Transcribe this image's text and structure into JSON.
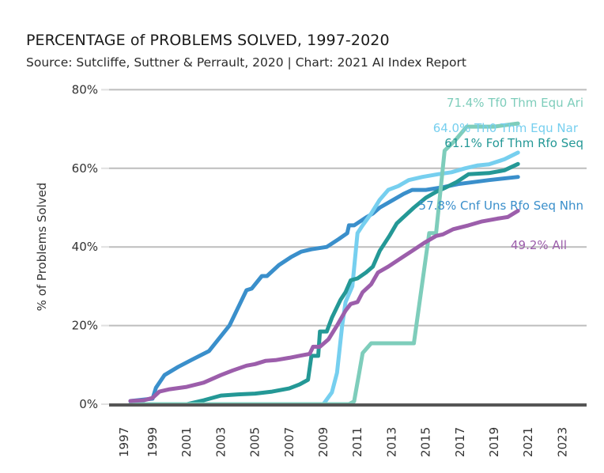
{
  "header": {
    "title": "PERCENTAGE of PROBLEMS SOLVED, 1997-2020",
    "subtitle": "Source: Sutcliffe, Suttner & Perrault, 2020 | Chart: 2021 AI Index Report"
  },
  "chart_data": {
    "type": "line",
    "title": "PERCENTAGE of PROBLEMS SOLVED, 1997-2020",
    "subtitle": "Source: Sutcliffe, Suttner & Perrault, 2020 | Chart: 2021 AI Index Report",
    "xlabel": "",
    "ylabel": "% of Problems Solved",
    "xlim": [
      1996.6,
      2024.4
    ],
    "ylim": [
      0,
      80
    ],
    "x_ticks": [
      "1997",
      "1999",
      "2001",
      "2003",
      "2005",
      "2007",
      "2009",
      "2011",
      "2013",
      "2015",
      "2017",
      "2019",
      "2021",
      "2023"
    ],
    "y_ticks": [
      "0%",
      "20%",
      "40%",
      "60%",
      "80%"
    ],
    "grid": "horizontal",
    "legend": "direct-labels-right",
    "series": [
      {
        "name": "Cnf Uns Rfo Seq Nhn",
        "label": "57.8% Cnf Uns Rfo Seq Nhn",
        "color": "#3A8FCB",
        "points": [
          [
            1997.7,
            0.8
          ],
          [
            1999.0,
            1.4
          ],
          [
            1999.2,
            4.2
          ],
          [
            1999.7,
            7.4
          ],
          [
            2000.5,
            9.5
          ],
          [
            2001.3,
            11.3
          ],
          [
            2002.3,
            13.5
          ],
          [
            2003.5,
            20.0
          ],
          [
            2004.5,
            29.0
          ],
          [
            2004.8,
            29.4
          ],
          [
            2005.4,
            32.6
          ],
          [
            2005.7,
            32.6
          ],
          [
            2006.4,
            35.4
          ],
          [
            2007.1,
            37.4
          ],
          [
            2007.7,
            38.8
          ],
          [
            2008.3,
            39.4
          ],
          [
            2009.2,
            40.0
          ],
          [
            2009.9,
            42.0
          ],
          [
            2010.4,
            43.5
          ],
          [
            2010.5,
            45.5
          ],
          [
            2010.8,
            45.5
          ],
          [
            2011.5,
            47.5
          ],
          [
            2011.9,
            48.5
          ],
          [
            2012.3,
            50.0
          ],
          [
            2013.1,
            52.0
          ],
          [
            2013.7,
            53.5
          ],
          [
            2014.2,
            54.5
          ],
          [
            2015.0,
            54.5
          ],
          [
            2016.0,
            55.2
          ],
          [
            2016.9,
            56.0
          ],
          [
            2017.8,
            56.5
          ],
          [
            2018.7,
            57.0
          ],
          [
            2020.4,
            57.8
          ]
        ]
      },
      {
        "name": "Th0 Thm Equ Nar",
        "label": "64.0% Th0 Thm Equ Nar",
        "color": "#76CFEF",
        "points": [
          [
            1997.7,
            0.0
          ],
          [
            2009.0,
            0.0
          ],
          [
            2009.5,
            3.0
          ],
          [
            2009.8,
            8.0
          ],
          [
            2010.1,
            20.0
          ],
          [
            2010.3,
            26.0
          ],
          [
            2010.7,
            30.0
          ],
          [
            2011.0,
            43.5
          ],
          [
            2011.3,
            45.5
          ],
          [
            2011.8,
            48.5
          ],
          [
            2012.3,
            52.0
          ],
          [
            2012.8,
            54.5
          ],
          [
            2013.4,
            55.5
          ],
          [
            2014.0,
            57.0
          ],
          [
            2014.8,
            57.8
          ],
          [
            2015.7,
            58.5
          ],
          [
            2016.5,
            59.0
          ],
          [
            2017.3,
            60.0
          ],
          [
            2018.0,
            60.7
          ],
          [
            2018.7,
            61.0
          ],
          [
            2019.6,
            62.3
          ],
          [
            2020.4,
            64.0
          ]
        ]
      },
      {
        "name": "Fof Thm Rfo Seq",
        "label": "61.1% Fof Thm Rfo Seq",
        "color": "#249896",
        "points": [
          [
            1997.7,
            0.0
          ],
          [
            2001.0,
            0.0
          ],
          [
            2002.0,
            1.0
          ],
          [
            2003.0,
            2.2
          ],
          [
            2004.0,
            2.5
          ],
          [
            2005.0,
            2.7
          ],
          [
            2006.0,
            3.2
          ],
          [
            2007.0,
            4.0
          ],
          [
            2007.6,
            5.0
          ],
          [
            2008.1,
            6.2
          ],
          [
            2008.3,
            12.3
          ],
          [
            2008.7,
            12.3
          ],
          [
            2008.8,
            18.5
          ],
          [
            2009.2,
            18.5
          ],
          [
            2009.5,
            22.0
          ],
          [
            2010.0,
            26.5
          ],
          [
            2010.3,
            28.5
          ],
          [
            2010.6,
            31.5
          ],
          [
            2011.0,
            32.0
          ],
          [
            2011.5,
            33.5
          ],
          [
            2011.9,
            35.0
          ],
          [
            2012.3,
            39.0
          ],
          [
            2012.9,
            43.0
          ],
          [
            2013.3,
            46.0
          ],
          [
            2013.8,
            48.0
          ],
          [
            2014.3,
            50.0
          ],
          [
            2015.0,
            52.5
          ],
          [
            2015.6,
            54.0
          ],
          [
            2016.1,
            55.0
          ],
          [
            2016.8,
            56.5
          ],
          [
            2017.5,
            58.5
          ],
          [
            2018.7,
            58.8
          ],
          [
            2019.6,
            59.5
          ],
          [
            2020.4,
            61.1
          ]
        ]
      },
      {
        "name": "Tf0 Thm Equ Ari",
        "label": "71.4% Tf0 Thm Equ Ari",
        "color": "#7ECDBB",
        "points": [
          [
            1997.7,
            0.0
          ],
          [
            2010.5,
            0.0
          ],
          [
            2010.8,
            0.7
          ],
          [
            2011.1,
            8.0
          ],
          [
            2011.3,
            13.0
          ],
          [
            2011.8,
            15.5
          ],
          [
            2013.6,
            15.5
          ],
          [
            2014.3,
            15.5
          ],
          [
            2015.2,
            43.5
          ],
          [
            2015.6,
            43.5
          ],
          [
            2016.1,
            64.5
          ],
          [
            2016.7,
            67.0
          ],
          [
            2017.4,
            70.6
          ],
          [
            2019.0,
            70.6
          ],
          [
            2020.4,
            71.4
          ]
        ]
      },
      {
        "name": "All",
        "label": "49.2% All",
        "color": "#9C5EAB",
        "points": [
          [
            1997.7,
            0.8
          ],
          [
            1998.5,
            1.0
          ],
          [
            1999.0,
            1.6
          ],
          [
            1999.4,
            3.2
          ],
          [
            2000.0,
            3.8
          ],
          [
            2001.0,
            4.4
          ],
          [
            2002.0,
            5.5
          ],
          [
            2003.0,
            7.4
          ],
          [
            2003.7,
            8.6
          ],
          [
            2004.5,
            9.8
          ],
          [
            2005.0,
            10.2
          ],
          [
            2005.6,
            11.0
          ],
          [
            2006.2,
            11.2
          ],
          [
            2007.0,
            11.8
          ],
          [
            2007.7,
            12.4
          ],
          [
            2008.2,
            12.8
          ],
          [
            2008.4,
            14.6
          ],
          [
            2008.8,
            14.6
          ],
          [
            2009.3,
            16.5
          ],
          [
            2009.8,
            20.0
          ],
          [
            2010.3,
            23.8
          ],
          [
            2010.6,
            25.5
          ],
          [
            2011.0,
            26.0
          ],
          [
            2011.3,
            28.5
          ],
          [
            2011.8,
            30.5
          ],
          [
            2012.2,
            33.5
          ],
          [
            2012.8,
            35.0
          ],
          [
            2013.5,
            37.0
          ],
          [
            2014.2,
            39.0
          ],
          [
            2014.9,
            41.0
          ],
          [
            2015.6,
            42.8
          ],
          [
            2016.0,
            43.2
          ],
          [
            2016.6,
            44.5
          ],
          [
            2017.5,
            45.5
          ],
          [
            2018.3,
            46.5
          ],
          [
            2019.2,
            47.2
          ],
          [
            2019.8,
            47.6
          ],
          [
            2020.4,
            49.2
          ]
        ]
      }
    ]
  }
}
